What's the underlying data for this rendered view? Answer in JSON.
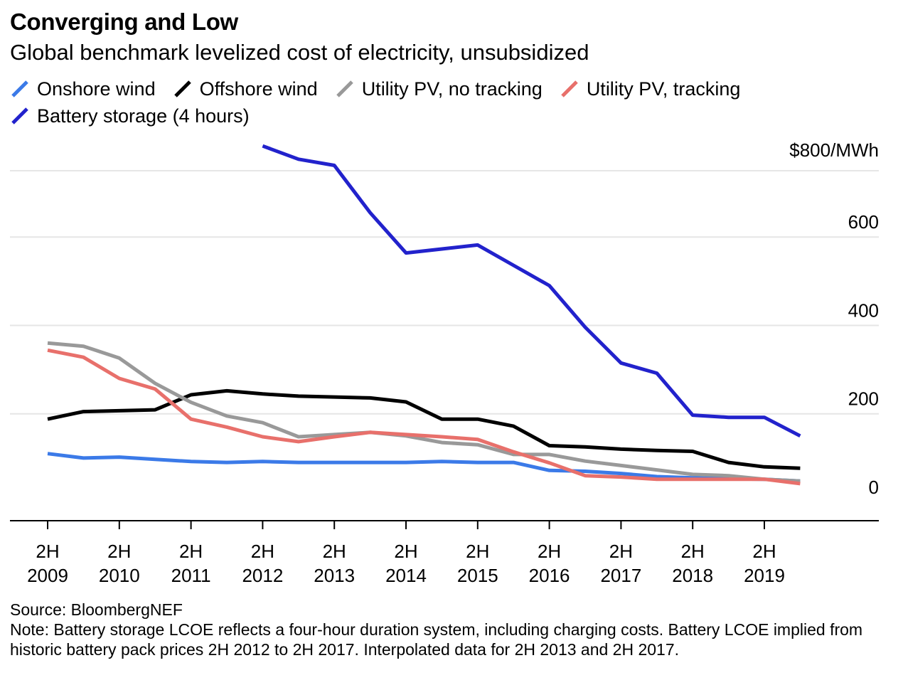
{
  "header": {
    "title": "Converging and Low",
    "subtitle": "Global benchmark levelized cost of electricity, unsubsidized"
  },
  "footer": {
    "source": "Source: BloombergNEF",
    "note": "Note: Battery storage LCOE reflects a four-hour duration system, including charging costs. Battery LCOE implied from historic battery pack prices 2H 2012 to 2H 2017. Interpolated data for 2H 2013 and 2H 2017."
  },
  "chart_data": {
    "type": "line",
    "y_unit_label": "$800/MWh",
    "ylim": [
      0,
      800
    ],
    "yticks": [
      {
        "value": 0,
        "label": "0"
      },
      {
        "value": 200,
        "label": "200"
      },
      {
        "value": 400,
        "label": "400"
      },
      {
        "value": 600,
        "label": "600"
      },
      {
        "value": 800,
        "label": "$800/MWh"
      }
    ],
    "y_axis_position": "right",
    "grid": true,
    "legend_placement": "top-left",
    "x": [
      "2H 2009",
      "1H 2010",
      "2H 2010",
      "1H 2011",
      "2H 2011",
      "1H 2012",
      "2H 2012",
      "1H 2013",
      "2H 2013",
      "1H 2014",
      "2H 2014",
      "1H 2015",
      "2H 2015",
      "1H 2016",
      "2H 2016",
      "1H 2017",
      "2H 2017",
      "1H 2018",
      "2H 2018",
      "1H 2019",
      "2H 2019",
      "1H 2020"
    ],
    "xticks": [
      {
        "line1": "2H",
        "line2": "2009",
        "index": 0
      },
      {
        "line1": "2H",
        "line2": "2010",
        "index": 2
      },
      {
        "line1": "2H",
        "line2": "2011",
        "index": 4
      },
      {
        "line1": "2H",
        "line2": "2012",
        "index": 6
      },
      {
        "line1": "2H",
        "line2": "2013",
        "index": 8
      },
      {
        "line1": "2H",
        "line2": "2014",
        "index": 10
      },
      {
        "line1": "2H",
        "line2": "2015",
        "index": 12
      },
      {
        "line1": "2H",
        "line2": "2016",
        "index": 14
      },
      {
        "line1": "2H",
        "line2": "2017",
        "index": 16
      },
      {
        "line1": "2H",
        "line2": "2018",
        "index": 18
      },
      {
        "line1": "2H",
        "line2": "2019",
        "index": 20
      }
    ],
    "series": [
      {
        "name": "Onshore wind",
        "color": "#3b7ae8",
        "values": [
          110,
          100,
          102,
          97,
          92,
          90,
          92,
          90,
          90,
          90,
          90,
          92,
          90,
          90,
          72,
          70,
          65,
          58,
          55,
          53,
          52,
          48
        ]
      },
      {
        "name": "Offshore wind",
        "color": "#000000",
        "values": [
          188,
          205,
          207,
          209,
          243,
          252,
          245,
          240,
          238,
          236,
          227,
          188,
          188,
          172,
          128,
          125,
          120,
          117,
          115,
          90,
          80,
          77
        ]
      },
      {
        "name": "Utility PV, no tracking",
        "color": "#999999",
        "values": [
          360,
          353,
          326,
          269,
          226,
          195,
          180,
          148,
          153,
          158,
          150,
          135,
          130,
          108,
          108,
          93,
          83,
          73,
          63,
          60,
          52,
          48
        ]
      },
      {
        "name": "Utility PV, tracking",
        "color": "#e8706b",
        "values": [
          344,
          328,
          280,
          256,
          188,
          170,
          148,
          137,
          148,
          158,
          153,
          148,
          142,
          114,
          89,
          60,
          57,
          52,
          52,
          52,
          52,
          42
        ]
      },
      {
        "name": "Battery storage (4 hours)",
        "color": "#2222cc",
        "values": [
          null,
          null,
          null,
          null,
          null,
          null,
          806,
          776,
          762,
          655,
          564,
          573,
          582,
          536,
          490,
          396,
          315,
          292,
          197,
          192,
          192,
          150
        ]
      }
    ]
  }
}
